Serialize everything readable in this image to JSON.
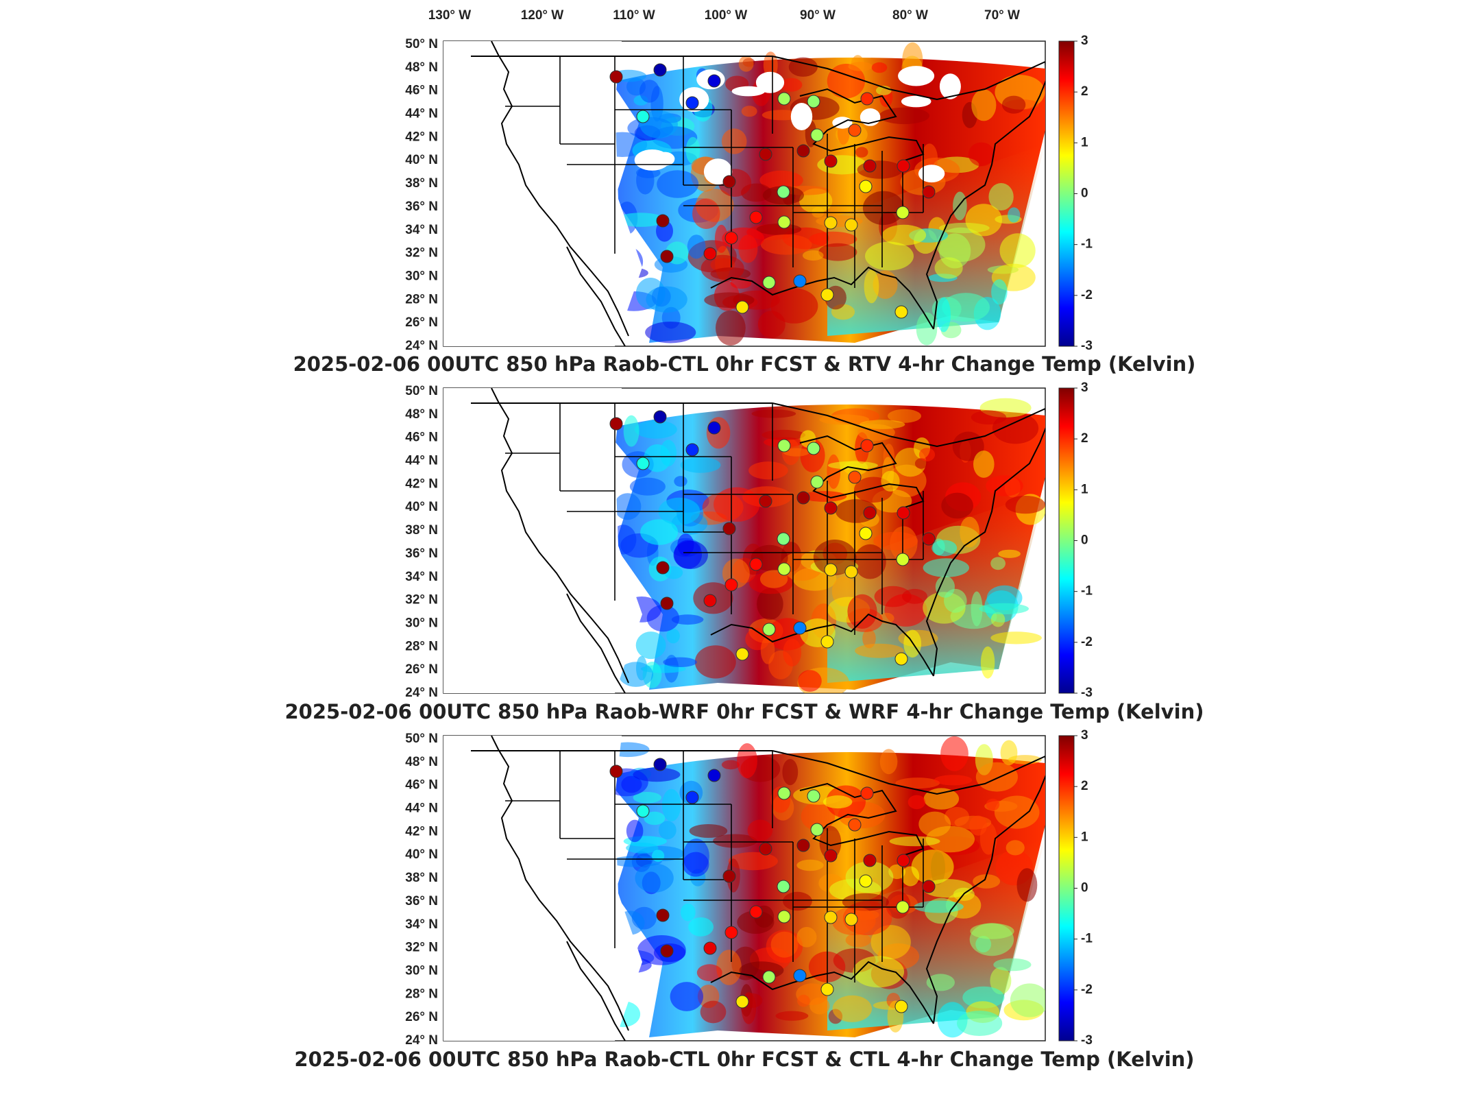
{
  "top_lon_labels": [
    "130° W",
    "120° W",
    "110° W",
    "100° W",
    "90° W",
    "80° W",
    "70° W"
  ],
  "lat_labels": [
    "50° N",
    "48° N",
    "46° N",
    "44° N",
    "42° N",
    "40° N",
    "38° N",
    "36° N",
    "34° N",
    "32° N",
    "30° N",
    "28° N",
    "26° N",
    "24° N"
  ],
  "colorbar": {
    "ticks": [
      "3",
      "2",
      "1",
      "0",
      "-1",
      "-2",
      "-3"
    ],
    "min": -3,
    "max": 3,
    "colormap": "jet",
    "units": "Kelvin"
  },
  "panels": [
    {
      "title": "2025-02-06 00UTC 850 hPa Raob-CTL 0hr FCST & RTV 4-hr Change Temp (Kelvin)"
    },
    {
      "title": "2025-02-06 00UTC 850 hPa Raob-WRF 0hr FCST & WRF 4-hr Change Temp (Kelvin)"
    },
    {
      "title": "2025-02-06 00UTC 850 hPa Raob-CTL 0hr FCST & CTL 4-hr Change Temp (Kelvin)"
    }
  ],
  "colors": {
    "jet_low": "#00008f",
    "jet_mid": "#80ff80",
    "jet_high": "#800000",
    "background": "#ffffff",
    "map_lines": "#000000"
  }
}
